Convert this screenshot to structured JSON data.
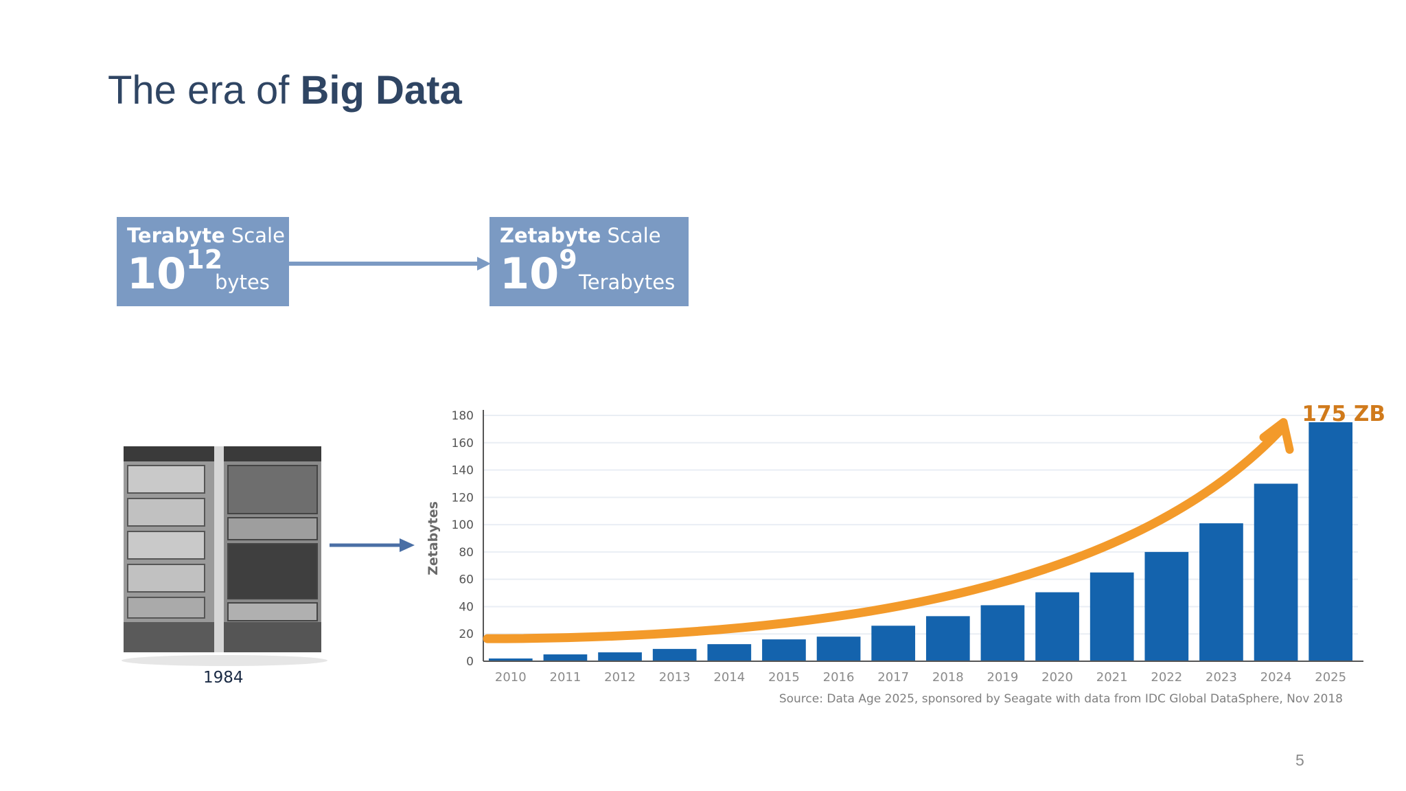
{
  "slide": {
    "title_prefix": "The era of ",
    "title_bold": "Big Data",
    "page_number": "5"
  },
  "scale_boxes": [
    {
      "label_bold": "Terabyte",
      "label_rest": " Scale",
      "base": "10",
      "exponent": "12",
      "unit": "bytes"
    },
    {
      "label_bold": "Zetabyte",
      "label_rest": " Scale",
      "base": "10",
      "exponent": "9",
      "unit": "Terabytes"
    }
  ],
  "server_caption": "1984",
  "colors": {
    "title": "#2f4563",
    "box_fill": "#7b9ac3",
    "arrow": "#4a6fa5",
    "bar": "#1463ad",
    "trend_arrow": "#f39a2a",
    "callout": "#d07a1b"
  },
  "chart_data": {
    "type": "bar",
    "categories": [
      "2010",
      "2011",
      "2012",
      "2013",
      "2014",
      "2015",
      "2016",
      "2017",
      "2018",
      "2019",
      "2020",
      "2021",
      "2022",
      "2023",
      "2024",
      "2025"
    ],
    "values": [
      2,
      5,
      6.5,
      9,
      12.5,
      16,
      18,
      26,
      33,
      41,
      50.5,
      65,
      80,
      101,
      130,
      175
    ],
    "title": "",
    "xlabel": "",
    "ylabel": "Zetabytes",
    "ylim": [
      0,
      180
    ],
    "yticks": [
      0,
      20,
      40,
      60,
      80,
      100,
      120,
      140,
      160,
      180
    ],
    "grid": true,
    "annotation": "175 ZB",
    "trend_arrow": true,
    "source": "Source: Data Age 2025, sponsored by Seagate with data from IDC Global DataSphere, Nov 2018"
  }
}
